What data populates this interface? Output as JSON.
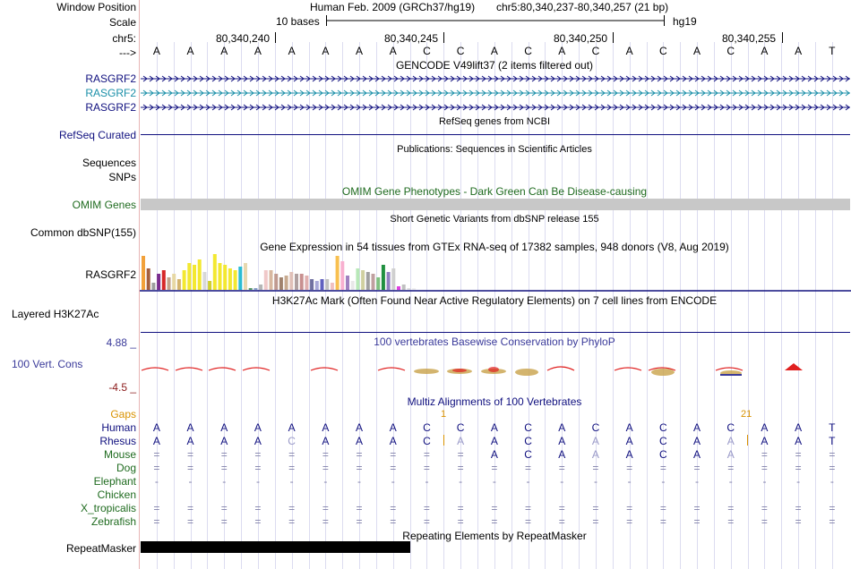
{
  "colors": {
    "navy": "#10107f",
    "teal": "#1a8fa8",
    "green": "#1f6b1f",
    "orange": "#d99200",
    "maroon": "#8b1a1a",
    "consRed": "#e02020",
    "consBlue": "#3a3a9a"
  },
  "header": {
    "window_position_label": "Window Position",
    "assembly": "Human Feb. 2009 (GRCh37/hg19)",
    "position": "chr5:80,340,237-80,340,257 (21 bp)",
    "scale_label": "Scale",
    "scale_text": "10 bases",
    "scale_db": "hg19",
    "chrom_label": "chr5:",
    "strand_label": "--->",
    "coords": [
      "80,340,240",
      "80,340,245",
      "80,340,250",
      "80,340,255"
    ]
  },
  "sequence": [
    "A",
    "A",
    "A",
    "A",
    "A",
    "A",
    "A",
    "A",
    "C",
    "C",
    "A",
    "C",
    "A",
    "C",
    "A",
    "C",
    "A",
    "C",
    "A",
    "A",
    "T"
  ],
  "tracks": {
    "gencode": {
      "title": "GENCODE V49lift37 (2 items filtered out)",
      "items": [
        "RASGRF2",
        "RASGRF2",
        "RASGRF2"
      ]
    },
    "refseq": {
      "title": "RefSeq genes from NCBI",
      "label": "RefSeq Curated"
    },
    "publications": {
      "title": "Publications: Sequences in Scientific Articles",
      "label": "Sequences"
    },
    "snps_label": "SNPs",
    "omim": {
      "title": "OMIM Gene Phenotypes - Dark Green Can Be Disease-causing",
      "label": "OMIM Genes"
    },
    "dbsnp": {
      "title": "Short Genetic Variants from dbSNP release 155",
      "label": "Common dbSNP(155)"
    },
    "gtex": {
      "title": "Gene Expression in 54 tissues from GTEx RNA-seq of 17382 samples, 948 donors (V8, Aug 2019)",
      "label": "RASGRF2"
    },
    "h3k27ac": {
      "title": "H3K27Ac Mark (Often Found Near Active Regulatory Elements) on 7 cell lines from ENCODE",
      "label": "Layered H3K27Ac"
    },
    "cons": {
      "title": "100 vertebrates Basewise Conservation by PhyloP",
      "label": "100 Vert. Cons",
      "max": "4.88 _",
      "min": "-4.5 _"
    },
    "multiz": {
      "title": "Multiz Alignments of 100 Vertebrates",
      "gaps_label": "Gaps",
      "gap1": "1",
      "gap2": "21"
    },
    "repeatmasker": {
      "title": "Repeating Elements by RepeatMasker",
      "label": "RepeatMasker"
    }
  },
  "species": [
    "Human",
    "Rhesus",
    "Mouse",
    "Dog",
    "Elephant",
    "Chicken",
    "X_tropicalis",
    "Zebrafish"
  ],
  "alignments": {
    "Rhesus": [
      "A",
      "A",
      "A",
      "A",
      "C",
      "A",
      "A",
      "A",
      "C",
      "A",
      "A",
      "C",
      "A",
      "A",
      "A",
      "C",
      "A",
      "A",
      "A",
      "A",
      "T"
    ],
    "Mouse": [
      "=",
      "=",
      "=",
      "=",
      "=",
      "=",
      "=",
      "=",
      "=",
      "=",
      "A",
      "C",
      "A",
      "A",
      "A",
      "C",
      "A",
      "A",
      "=",
      "=",
      "="
    ],
    "Dog": [
      "=",
      "=",
      "=",
      "=",
      "=",
      "=",
      "=",
      "=",
      "=",
      "=",
      "=",
      "=",
      "=",
      "=",
      "=",
      "=",
      "=",
      "=",
      "=",
      "=",
      "="
    ],
    "Elephant": [
      "-",
      "-",
      "-",
      "-",
      "-",
      "-",
      "-",
      "-",
      "-",
      "-",
      "-",
      "-",
      "-",
      "-",
      "-",
      "-",
      "-",
      "-",
      "-",
      "-",
      "-"
    ],
    "X_tropicalis": [
      "=",
      "=",
      "=",
      "=",
      "=",
      "=",
      "=",
      "=",
      "=",
      "=",
      "=",
      "=",
      "=",
      "=",
      "=",
      "=",
      "=",
      "=",
      "=",
      "=",
      "="
    ],
    "Zebrafish": [
      "=",
      "=",
      "=",
      "=",
      "=",
      "=",
      "=",
      "=",
      "=",
      "=",
      "=",
      "=",
      "=",
      "=",
      "=",
      "=",
      "=",
      "=",
      "=",
      "=",
      "="
    ]
  },
  "gtex_values": [
    0.95,
    0.6,
    0.2,
    0.45,
    0.55,
    0.35,
    0.45,
    0.3,
    0.55,
    0.75,
    0.7,
    0.85,
    0.5,
    0.25,
    1.0,
    0.75,
    0.7,
    0.6,
    0.55,
    0.65,
    0.75,
    0.05,
    0.05,
    0.15,
    0.55,
    0.55,
    0.45,
    0.35,
    0.4,
    0.5,
    0.45,
    0.45,
    0.4,
    0.3,
    0.25,
    0.3,
    0.3,
    0.2,
    0.95,
    0.8,
    0.4,
    0.25,
    0.6,
    0.55,
    0.5,
    0.45,
    0.35,
    0.7,
    0.5,
    0.6,
    0.1,
    0.15,
    0.05,
    0.05
  ]
}
